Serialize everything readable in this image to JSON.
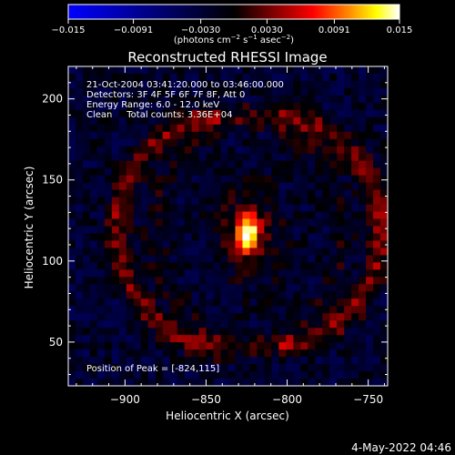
{
  "chart_data": {
    "type": "heatmap",
    "title": "Reconstructed RHESSI Image",
    "xlabel": "Heliocentric X (arcsec)",
    "ylabel": "Heliocentric Y (arcsec)",
    "xlim": [
      -935,
      -738
    ],
    "ylim": [
      23,
      220
    ],
    "x_ticks": [
      -900,
      -850,
      -800,
      -750
    ],
    "x_tick_labels": [
      "−900",
      "−850",
      "−800",
      "−750"
    ],
    "y_ticks": [
      50,
      100,
      150,
      200
    ],
    "y_tick_labels": [
      "50",
      "100",
      "150",
      "200"
    ],
    "colorbar": {
      "range": [
        -0.015,
        0.015
      ],
      "ticks": [
        -0.015,
        -0.0091,
        -0.003,
        0.003,
        0.0091,
        0.015
      ],
      "tick_labels": [
        "−0.015",
        "−0.0091",
        "−0.0030",
        "0.0030",
        "0.0091",
        "0.015"
      ],
      "label_text": "(photons cm",
      "label_exp1": "−2",
      "label_mid": " s",
      "label_exp2": "−1",
      "label_mid2": " asec",
      "label_exp3": "−2",
      "label_end": ")",
      "colors": [
        "#0000ff",
        "#000000",
        "#7f0000",
        "#ff0000",
        "#ff8000",
        "#ffff00",
        "#ffffff"
      ]
    },
    "annotations": [
      "21-Oct-2004 03:41:20.000 to 03:46:00.000",
      "Detectors: 3F 4F 5F 6F 7F 8F, Att 0",
      "Energy Range: 6.0 - 12.0 keV",
      "Clean     Total counts: 3.36E+04"
    ],
    "peak_label": "Position of Peak = [-824,115]",
    "peak": [
      -824,
      115
    ],
    "features": {
      "core": {
        "x": -824,
        "y": 117,
        "sigma_x": 4.5,
        "sigma_y": 7.5,
        "amplitude": 0.015
      },
      "halo": {
        "x": -824,
        "y": 117,
        "sigma_x": 14,
        "sigma_y": 20,
        "amplitude": 0.0045
      },
      "ring_left": {
        "x": -835,
        "y": 118,
        "radius_x": 70,
        "radius_y": 72,
        "width": 7,
        "amplitude": 0.0055,
        "angle_range": [
          95,
          265
        ]
      },
      "ring_right": {
        "x": -812,
        "y": 118,
        "radius_x": 70,
        "radius_y": 72,
        "width": 7,
        "amplitude": 0.0055,
        "angle_range": [
          -85,
          85
        ]
      },
      "background": -0.0025
    },
    "date_stamp": "4-May-2022 04:46"
  }
}
